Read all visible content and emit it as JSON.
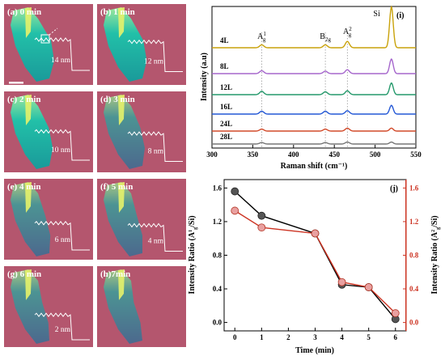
{
  "image_panels": [
    {
      "label": "(a) 0 min",
      "thickness": "14 nm"
    },
    {
      "label": "(b) 1 min",
      "thickness": "12 nm"
    },
    {
      "label": "(c) 2 min",
      "thickness": "10 nm"
    },
    {
      "label": "(d) 3 min",
      "thickness": "8 nm"
    },
    {
      "label": "(e) 4 min",
      "thickness": "6 nm"
    },
    {
      "label": "(f) 5 min",
      "thickness": "4 nm"
    },
    {
      "label": "(g) 6 min",
      "thickness": "2 nm"
    },
    {
      "label": "(h)7min",
      "thickness": ""
    }
  ],
  "colors": {
    "substrate": "#b4566e",
    "flake_thick": "#1fb8a8",
    "flake_thin": "#2e7fa5",
    "flake_edge": "#e6f26a",
    "black_series": "#333333",
    "red_series": "#cc3322"
  },
  "chart_data": [
    {
      "panel": "(i)",
      "type": "line",
      "title": "",
      "xlabel": "Raman shift (cm⁻¹)",
      "ylabel": "Intensity (a.u)",
      "xlim": [
        300,
        550
      ],
      "xticks": [
        300,
        350,
        400,
        450,
        500,
        550
      ],
      "peak_positions": [
        361,
        439,
        466,
        520
      ],
      "peak_labels": [
        {
          "text": "A",
          "sup": "1",
          "sub": "g",
          "x": 361
        },
        {
          "text": "B",
          "sup": "",
          "sub": "2g",
          "x": 439
        },
        {
          "text": "A",
          "sup": "2",
          "sub": "g",
          "x": 466
        },
        {
          "text": "Si",
          "sup": "",
          "sub": "",
          "x": 520
        }
      ],
      "series": [
        {
          "name": "4L",
          "color": "#c9a20a",
          "peaks": [
            0.3,
            0.3,
            0.65,
            4.2
          ]
        },
        {
          "name": "8L",
          "color": "#a566cc",
          "peaks": [
            0.3,
            0.25,
            0.4,
            1.5
          ]
        },
        {
          "name": "12L",
          "color": "#24996b",
          "peaks": [
            0.35,
            0.3,
            0.4,
            1.2
          ]
        },
        {
          "name": "16L",
          "color": "#2458d6",
          "peaks": [
            0.3,
            0.3,
            0.35,
            0.9
          ]
        },
        {
          "name": "24L",
          "color": "#d24a2a",
          "peaks": [
            0.2,
            0.2,
            0.3,
            0.3
          ]
        },
        {
          "name": "28L",
          "color": "#777777",
          "peaks": [
            0.15,
            0.15,
            0.2,
            0.2
          ]
        }
      ]
    },
    {
      "panel": "(j)",
      "type": "line",
      "title": "",
      "xlabel": "Time (min)",
      "ylabel_left": "Intensity Ratio (A¹g/Si)",
      "ylabel_right": "Intensity Ratio (A²g/Si)",
      "xlim": [
        -0.4,
        6.4
      ],
      "ylim": [
        -0.1,
        1.7
      ],
      "xticks": [
        0,
        1,
        2,
        3,
        4,
        5,
        6
      ],
      "yticks": [
        "0.0",
        "0.4",
        "0.8",
        "1.2",
        "1.6"
      ],
      "series": [
        {
          "name": "A1g/Si",
          "axis": "left",
          "color": "#333333",
          "x": [
            0,
            1,
            3,
            4,
            5,
            6
          ],
          "y": [
            1.56,
            1.27,
            1.06,
            0.45,
            0.42,
            0.04
          ]
        },
        {
          "name": "A2g/Si",
          "axis": "right",
          "color": "#cc3322",
          "x": [
            0,
            1,
            3,
            4,
            5,
            6
          ],
          "y": [
            1.33,
            1.13,
            1.06,
            0.48,
            0.42,
            0.11
          ]
        }
      ]
    }
  ]
}
